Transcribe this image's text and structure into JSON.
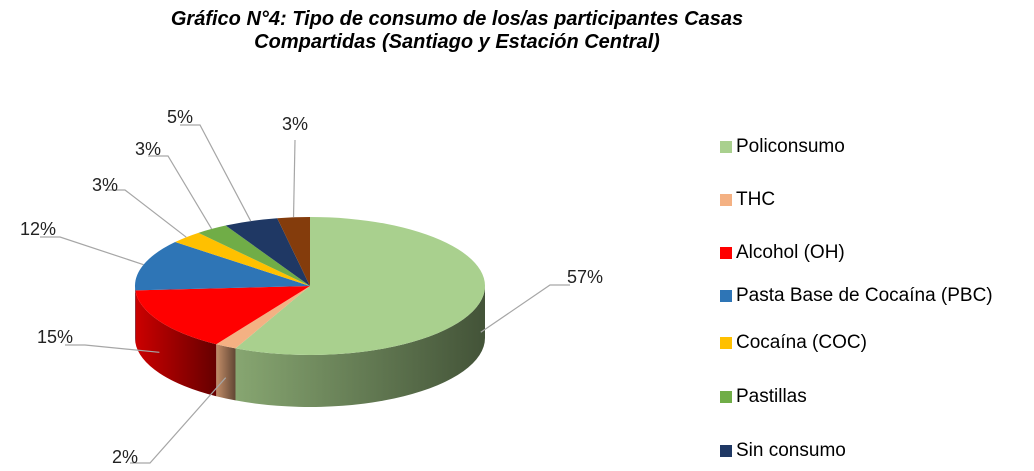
{
  "chart_data": {
    "type": "pie3d",
    "title": "Gráfico N°4: Tipo de consumo de los/as participantes Casas Compartidas (Santiago y Estación Central)",
    "categories": [
      "Policonsumo",
      "THC",
      "Alcohol (OH)",
      "Pasta Base de Cocaína (PBC)",
      "Cocaína (COC)",
      "Pastillas",
      "Sin consumo",
      null
    ],
    "values": [
      57,
      2,
      15,
      12,
      3,
      3,
      5,
      3
    ],
    "value_labels": [
      "57%",
      "2%",
      "15%",
      "12%",
      "3%",
      "3%",
      "5%",
      "3%"
    ],
    "colors": [
      "#a9d08e",
      "#f4b183",
      "#ff0000",
      "#2e75b6",
      "#ffc000",
      "#70ad47",
      "#1f3864",
      "#843c0c"
    ],
    "legend": "right"
  }
}
